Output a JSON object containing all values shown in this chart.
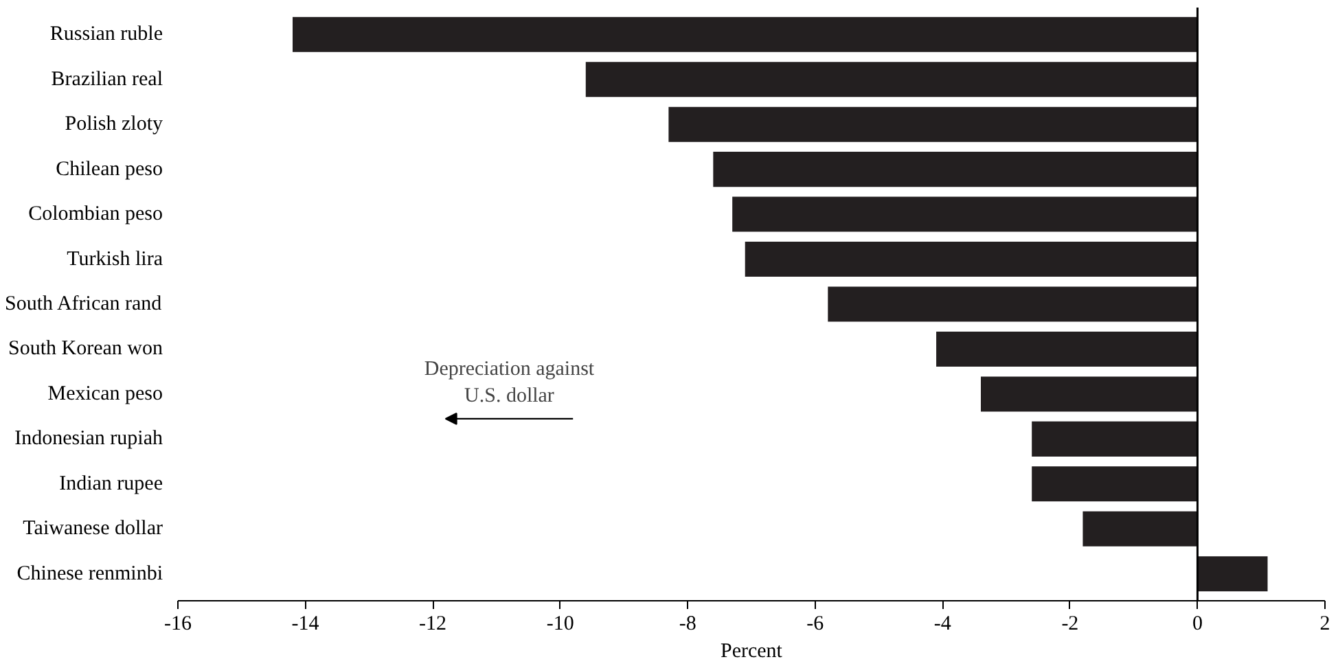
{
  "chart_data": {
    "type": "bar",
    "orientation": "horizontal",
    "xlabel": "Percent",
    "categories": [
      "Russian ruble",
      "Brazilian real",
      "Polish zloty",
      "Chilean peso",
      "Colombian peso",
      "Turkish lira",
      "South African rand",
      "South Korean won",
      "Mexican peso",
      "Indonesian rupiah",
      "Indian rupee",
      "Taiwanese dollar",
      "Chinese renminbi"
    ],
    "values": [
      -14.2,
      -9.6,
      -8.3,
      -7.6,
      -7.3,
      -7.1,
      -5.8,
      -4.1,
      -3.4,
      -2.6,
      -2.6,
      -1.8,
      1.1
    ],
    "color": "#231f20",
    "xlim": [
      -16,
      2
    ],
    "xticks": [
      -16,
      -14,
      -12,
      -10,
      -8,
      -6,
      -4,
      -2,
      0,
      2
    ],
    "ref_lines": [
      {
        "axis": "x",
        "value": 0,
        "color": "#000000"
      }
    ],
    "annotations": [
      "Depreciation against\nU.S. dollar"
    ],
    "grid": false
  }
}
